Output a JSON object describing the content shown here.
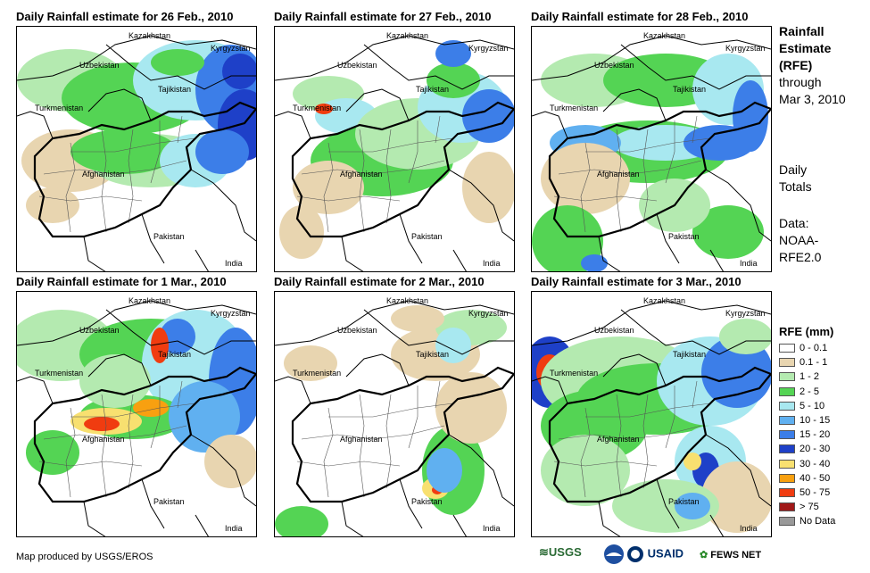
{
  "panels": [
    {
      "title": "Daily Rainfall estimate for 26 Feb., 2010"
    },
    {
      "title": "Daily Rainfall estimate for 27 Feb., 2010"
    },
    {
      "title": "Daily Rainfall estimate for 28 Feb., 2010"
    },
    {
      "title": "Daily Rainfall estimate for 1 Mar., 2010"
    },
    {
      "title": "Daily Rainfall estimate for 2 Mar., 2010"
    },
    {
      "title": "Daily Rainfall estimate for 3 Mar., 2010"
    }
  ],
  "place_labels": {
    "kazakhstan": "Kazakhstan",
    "kyrgyzstan": "Kyrgyzstan",
    "uzbekistan": "Uzbekistan",
    "tajikistan": "Tajikistan",
    "turkmenistan": "Turkmenistan",
    "afghanistan": "Afghanistan",
    "pakistan": "Pakistan",
    "india": "India"
  },
  "side_text": {
    "title_line1": "Rainfall",
    "title_line2": "Estimate",
    "title_line3": "(RFE)",
    "through": "through",
    "date": "Mar 3, 2010",
    "daily1": "Daily",
    "daily2": "Totals",
    "data1": "Data:",
    "data2": "NOAA-",
    "data3": "RFE2.0"
  },
  "legend": {
    "title": "RFE (mm)",
    "items": [
      {
        "label": "0 - 0.1",
        "color": "#ffffff"
      },
      {
        "label": "0.1 - 1",
        "color": "#e8d5b0"
      },
      {
        "label": "1 - 2",
        "color": "#b4eab0"
      },
      {
        "label": "2 - 5",
        "color": "#54d454"
      },
      {
        "label": "5 - 10",
        "color": "#a8e8f0"
      },
      {
        "label": "10 - 15",
        "color": "#60b0f0"
      },
      {
        "label": "15 - 20",
        "color": "#3c7ee8"
      },
      {
        "label": "20 - 30",
        "color": "#1e40c8"
      },
      {
        "label": "30 - 40",
        "color": "#f8e070"
      },
      {
        "label": "40 - 50",
        "color": "#f8a010"
      },
      {
        "label": "50 - 75",
        "color": "#f03c10"
      },
      {
        "label": "> 75",
        "color": "#a01818"
      },
      {
        "label": "No Data",
        "color": "#999999"
      }
    ]
  },
  "footer": {
    "credit": "Map produced by USGS/EROS",
    "logos": [
      "USGS",
      "USAID",
      "FEWS NET"
    ]
  }
}
